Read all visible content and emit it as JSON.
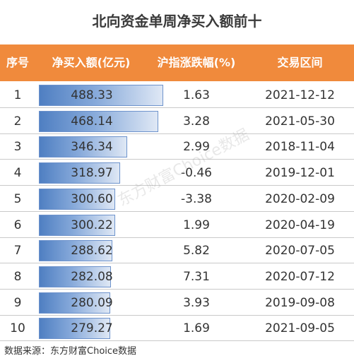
{
  "chart_data": {
    "type": "table",
    "title": "北向资金单周净买入额前十",
    "columns": [
      "序号",
      "净买入额(亿元)",
      "沪指涨跌幅(%)",
      "交易区间"
    ],
    "rows": [
      {
        "rank": "1",
        "net_buy": 488.33,
        "net_buy_label": "488.33",
        "index_change": "1.63",
        "period": "2021-12-12"
      },
      {
        "rank": "2",
        "net_buy": 468.14,
        "net_buy_label": "468.14",
        "index_change": "3.28",
        "period": "2021-05-30"
      },
      {
        "rank": "3",
        "net_buy": 346.34,
        "net_buy_label": "346.34",
        "index_change": "2.99",
        "period": "2018-11-04"
      },
      {
        "rank": "4",
        "net_buy": 318.97,
        "net_buy_label": "318.97",
        "index_change": "-0.46",
        "period": "2019-12-01"
      },
      {
        "rank": "5",
        "net_buy": 300.6,
        "net_buy_label": "300.60",
        "index_change": "-3.38",
        "period": "2020-02-09"
      },
      {
        "rank": "6",
        "net_buy": 300.22,
        "net_buy_label": "300.22",
        "index_change": "1.99",
        "period": "2020-04-19"
      },
      {
        "rank": "7",
        "net_buy": 288.62,
        "net_buy_label": "288.62",
        "index_change": "5.82",
        "period": "2020-07-05"
      },
      {
        "rank": "8",
        "net_buy": 282.08,
        "net_buy_label": "282.08",
        "index_change": "7.31",
        "period": "2020-07-12"
      },
      {
        "rank": "9",
        "net_buy": 280.09,
        "net_buy_label": "280.09",
        "index_change": "3.93",
        "period": "2019-09-08"
      },
      {
        "rank": "10",
        "net_buy": 279.27,
        "net_buy_label": "279.27",
        "index_change": "1.69",
        "period": "2021-09-05"
      }
    ],
    "bar_max": 500
  },
  "header_color": "#f08a3c",
  "bar_color": "#4f7fc2",
  "watermark": "东方财富Choice数据",
  "source": "数据来源：东方财富Choice数据"
}
